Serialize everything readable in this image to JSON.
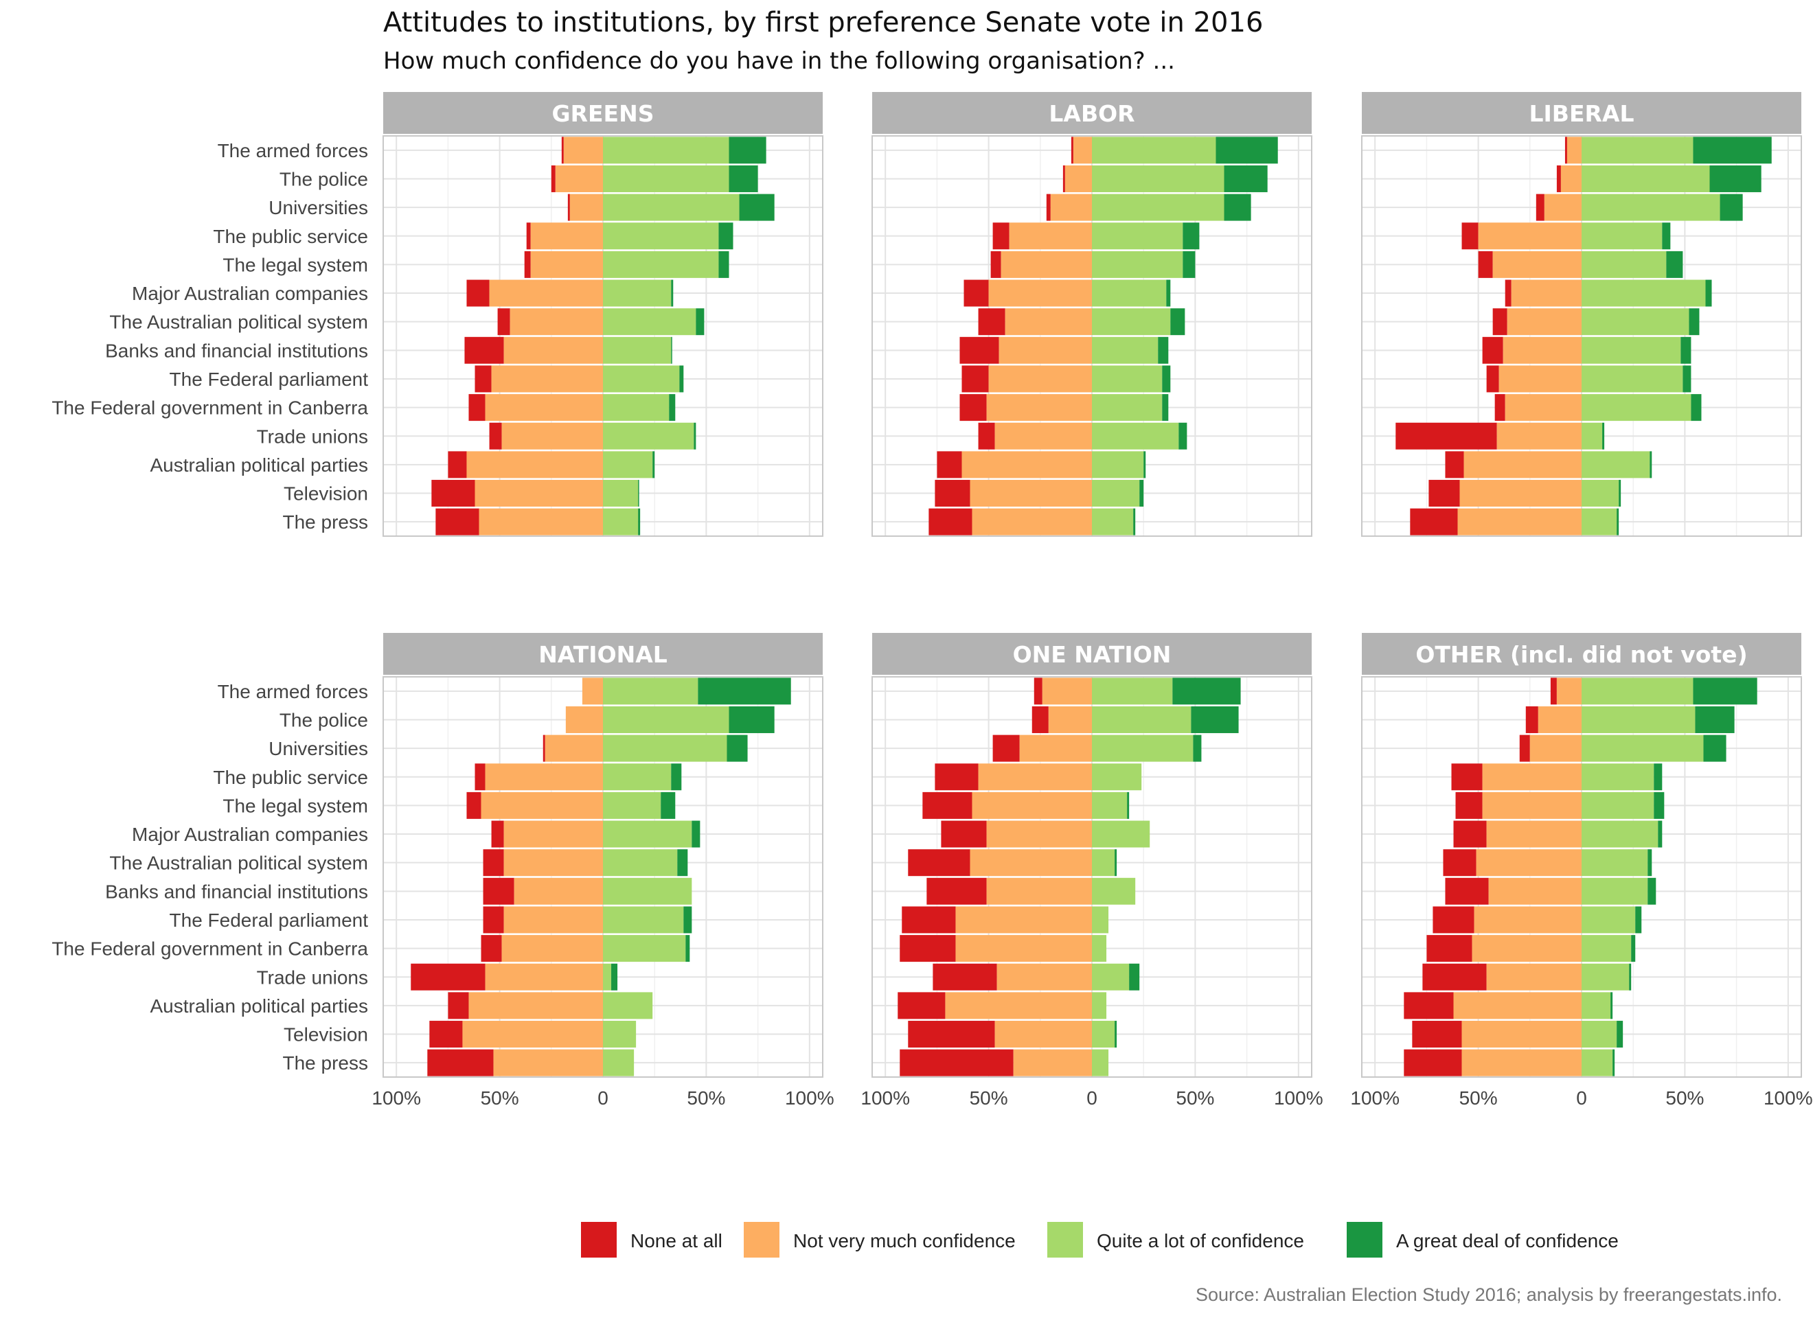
{
  "chart_data": {
    "type": "bar",
    "orientation": "horizontal",
    "layout": "diverging-stacked",
    "title": "Attitudes to institutions, by first preference Senate vote in 2016",
    "subtitle": "How much confidence do you have in the following organisation? ...",
    "caption": "Source: Australian Election Study 2016; analysis by freerangestats.info.",
    "categories": [
      "The armed forces",
      "The police",
      "Universities",
      "The public service",
      "The legal system",
      "Major Australian companies",
      "The Australian political system",
      "Banks and financial institutions",
      "The Federal parliament",
      "The Federal government in Canberra",
      "Trade unions",
      "Australian political parties",
      "Television",
      "The press"
    ],
    "x_ticks": [
      "100%",
      "50%",
      "0",
      "50%",
      "100%"
    ],
    "xlim": [
      -100,
      100
    ],
    "grid": true,
    "legend_position": "bottom",
    "series": [
      {
        "name": "None at all",
        "color": "#d7191c"
      },
      {
        "name": "Not very much confidence",
        "color": "#fdae61"
      },
      {
        "name": "Quite a lot of confidence",
        "color": "#a6d96a"
      },
      {
        "name": "A great deal of confidence",
        "color": "#1a9641"
      }
    ],
    "panels": [
      {
        "label": "GREENS",
        "values": [
          [
            1,
            19,
            61,
            18
          ],
          [
            2,
            23,
            61,
            14
          ],
          [
            1,
            16,
            66,
            17
          ],
          [
            2,
            35,
            56,
            7
          ],
          [
            3,
            35,
            56,
            5
          ],
          [
            11,
            55,
            33,
            1
          ],
          [
            6,
            45,
            45,
            4
          ],
          [
            19,
            48,
            33,
            0.5
          ],
          [
            8,
            54,
            37,
            2
          ],
          [
            8,
            57,
            32,
            3
          ],
          [
            6,
            49,
            44,
            1
          ],
          [
            9,
            66,
            24,
            1
          ],
          [
            21,
            62,
            17,
            0.5
          ],
          [
            21,
            60,
            17,
            1
          ]
        ]
      },
      {
        "label": "LABOR",
        "values": [
          [
            1,
            9,
            60,
            30
          ],
          [
            1,
            13,
            64,
            21
          ],
          [
            2,
            20,
            64,
            13
          ],
          [
            8,
            40,
            44,
            8
          ],
          [
            5,
            44,
            44,
            6
          ],
          [
            12,
            50,
            36,
            2
          ],
          [
            13,
            42,
            38,
            7
          ],
          [
            19,
            45,
            32,
            5
          ],
          [
            13,
            50,
            34,
            4
          ],
          [
            13,
            51,
            34,
            3
          ],
          [
            8,
            47,
            42,
            4
          ],
          [
            12,
            63,
            25,
            1
          ],
          [
            17,
            59,
            23,
            2
          ],
          [
            21,
            58,
            20,
            1
          ]
        ]
      },
      {
        "label": "LIBERAL",
        "values": [
          [
            1,
            7,
            54,
            38
          ],
          [
            2,
            10,
            62,
            25
          ],
          [
            4,
            18,
            67,
            11
          ],
          [
            8,
            50,
            39,
            4
          ],
          [
            7,
            43,
            41,
            8
          ],
          [
            3,
            34,
            60,
            3
          ],
          [
            7,
            36,
            52,
            5
          ],
          [
            10,
            38,
            48,
            5
          ],
          [
            6,
            40,
            49,
            4
          ],
          [
            5,
            37,
            53,
            5
          ],
          [
            49,
            41,
            10,
            1
          ],
          [
            9,
            57,
            33,
            1
          ],
          [
            15,
            59,
            18,
            1
          ],
          [
            23,
            60,
            17,
            1
          ]
        ]
      },
      {
        "label": "NATIONAL",
        "values": [
          [
            0,
            10,
            46,
            45
          ],
          [
            0,
            18,
            61,
            22
          ],
          [
            1,
            28,
            60,
            10
          ],
          [
            5,
            57,
            33,
            5
          ],
          [
            7,
            59,
            28,
            7
          ],
          [
            6,
            48,
            43,
            4
          ],
          [
            10,
            48,
            36,
            5
          ],
          [
            15,
            43,
            43,
            0
          ],
          [
            10,
            48,
            39,
            4
          ],
          [
            10,
            49,
            40,
            2
          ],
          [
            36,
            57,
            4,
            3
          ],
          [
            10,
            65,
            24,
            0
          ],
          [
            16,
            68,
            16,
            0
          ],
          [
            32,
            53,
            15,
            0
          ]
        ]
      },
      {
        "label": "ONE NATION",
        "values": [
          [
            4,
            24,
            39,
            33
          ],
          [
            8,
            21,
            48,
            23
          ],
          [
            13,
            35,
            49,
            4
          ],
          [
            21,
            55,
            24,
            0
          ],
          [
            24,
            58,
            17,
            1
          ],
          [
            22,
            51,
            28,
            0
          ],
          [
            30,
            59,
            11,
            1
          ],
          [
            29,
            51,
            21,
            0
          ],
          [
            26,
            66,
            8,
            0
          ],
          [
            27,
            66,
            7,
            0
          ],
          [
            31,
            46,
            18,
            5
          ],
          [
            23,
            71,
            7,
            0
          ],
          [
            42,
            47,
            11,
            1
          ],
          [
            55,
            38,
            8,
            0
          ]
        ]
      },
      {
        "label": "OTHER (incl. did not vote)",
        "values": [
          [
            3,
            12,
            54,
            31
          ],
          [
            6,
            21,
            55,
            19
          ],
          [
            5,
            25,
            59,
            11
          ],
          [
            15,
            48,
            35,
            4
          ],
          [
            13,
            48,
            35,
            5
          ],
          [
            16,
            46,
            37,
            2
          ],
          [
            16,
            51,
            32,
            2
          ],
          [
            21,
            45,
            32,
            4
          ],
          [
            20,
            52,
            26,
            3
          ],
          [
            22,
            53,
            24,
            2
          ],
          [
            31,
            46,
            23,
            1
          ],
          [
            24,
            62,
            14,
            1
          ],
          [
            24,
            58,
            17,
            3
          ],
          [
            28,
            58,
            15,
            1
          ]
        ]
      }
    ]
  }
}
